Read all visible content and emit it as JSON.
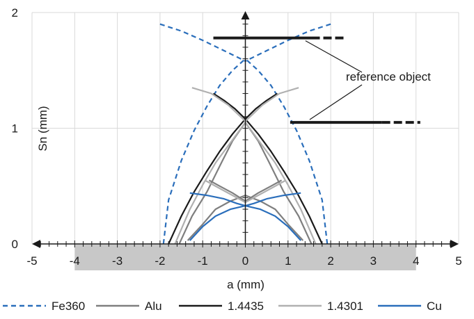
{
  "chart_data": {
    "type": "line",
    "xlabel": "a (mm)",
    "ylabel": "Sn (mm)",
    "xlim": [
      -5,
      5
    ],
    "ylim": [
      0,
      2
    ],
    "x_ticks": [
      -5,
      -4,
      -3,
      -2,
      -1,
      0,
      1,
      2,
      3,
      4,
      5
    ],
    "y_ticks": [
      0,
      1,
      2
    ],
    "grid": "vertical and horizontal, light gray",
    "shaded_band": {
      "x_range": [
        -4,
        4
      ],
      "color": "#c8c8c8"
    },
    "legend_position": "bottom",
    "annotation": "reference object",
    "reference_objects": [
      {
        "x_range": [
          -0.75,
          2.3
        ],
        "y": 1.78,
        "solid_to": 1.55
      },
      {
        "x_range": [
          1.05,
          4.1
        ],
        "y": 1.05,
        "solid_to": 3.2
      }
    ],
    "series": [
      {
        "name": "Fe360",
        "color": "#2a6ebb",
        "dash": true,
        "curves": [
          {
            "x": [
              -1.92,
              -1.8,
              -1.5,
              -1.2,
              -0.9,
              -0.6,
              -0.3,
              0
            ],
            "y": [
              0.0,
              0.38,
              0.72,
              0.98,
              1.19,
              1.37,
              1.5,
              1.6
            ]
          },
          {
            "x": [
              1.92,
              1.8,
              1.5,
              1.2,
              0.9,
              0.6,
              0.3,
              0
            ],
            "y": [
              0.0,
              0.38,
              0.72,
              0.98,
              1.19,
              1.37,
              1.5,
              1.6
            ]
          },
          {
            "x": [
              -2.0,
              -1.5,
              -1.0,
              -0.5,
              0
            ],
            "y": [
              1.9,
              1.84,
              1.76,
              1.67,
              1.58
            ]
          },
          {
            "x": [
              2.0,
              1.5,
              1.0,
              0.5,
              0
            ],
            "y": [
              1.9,
              1.84,
              1.76,
              1.67,
              1.58
            ]
          }
        ]
      },
      {
        "name": "Alu",
        "color": "#7f7f7f",
        "dash": false,
        "curves": [
          {
            "x": [
              -1.55,
              -1.25,
              -0.9,
              -0.55,
              -0.3,
              0
            ],
            "y": [
              0.0,
              0.24,
              0.45,
              0.71,
              0.89,
              1.05
            ]
          },
          {
            "x": [
              1.55,
              1.25,
              0.9,
              0.55,
              0.3,
              0
            ],
            "y": [
              0.0,
              0.24,
              0.45,
              0.71,
              0.89,
              1.05
            ]
          },
          {
            "x": [
              -1.35,
              -1.0,
              -0.7,
              -0.35,
              0
            ],
            "y": [
              0.03,
              0.17,
              0.3,
              0.37,
              0.42
            ]
          },
          {
            "x": [
              1.35,
              1.0,
              0.7,
              0.35,
              0
            ],
            "y": [
              0.03,
              0.17,
              0.3,
              0.37,
              0.42
            ]
          },
          {
            "x": [
              -0.85,
              -0.6,
              -0.3,
              0
            ],
            "y": [
              0.55,
              0.5,
              0.44,
              0.37
            ]
          },
          {
            "x": [
              0.85,
              0.6,
              0.3,
              0
            ],
            "y": [
              0.55,
              0.5,
              0.44,
              0.37
            ]
          }
        ]
      },
      {
        "name": "1.4435",
        "color": "#1a1a1a",
        "dash": false,
        "curves": [
          {
            "x": [
              -1.8,
              -1.5,
              -1.2,
              -0.9,
              -0.6,
              -0.3,
              0
            ],
            "y": [
              0.0,
              0.24,
              0.45,
              0.63,
              0.8,
              0.95,
              1.08
            ]
          },
          {
            "x": [
              1.8,
              1.5,
              1.2,
              0.9,
              0.6,
              0.3,
              0
            ],
            "y": [
              0.0,
              0.24,
              0.45,
              0.63,
              0.8,
              0.95,
              1.08
            ]
          },
          {
            "x": [
              -0.75,
              -0.5,
              -0.25,
              0
            ],
            "y": [
              1.3,
              1.24,
              1.17,
              1.08
            ]
          },
          {
            "x": [
              0.75,
              0.5,
              0.25,
              0
            ],
            "y": [
              1.3,
              1.24,
              1.17,
              1.08
            ]
          }
        ]
      },
      {
        "name": "1.4301",
        "color": "#b0b0b0",
        "dash": false,
        "curves": [
          {
            "x": [
              -1.65,
              -1.3,
              -1.0,
              -0.7,
              -0.4,
              0
            ],
            "y": [
              0.0,
              0.3,
              0.51,
              0.7,
              0.85,
              1.05
            ]
          },
          {
            "x": [
              1.65,
              1.3,
              1.0,
              0.7,
              0.4,
              0
            ],
            "y": [
              0.0,
              0.3,
              0.51,
              0.7,
              0.85,
              1.05
            ]
          },
          {
            "x": [
              -1.25,
              -0.8,
              -0.4,
              0
            ],
            "y": [
              1.35,
              1.3,
              1.2,
              1.06
            ]
          },
          {
            "x": [
              1.25,
              0.8,
              0.4,
              0
            ],
            "y": [
              1.35,
              1.3,
              1.2,
              1.06
            ]
          },
          {
            "x": [
              -0.95,
              -0.6,
              -0.3,
              0
            ],
            "y": [
              0.55,
              0.48,
              0.42,
              0.36
            ]
          },
          {
            "x": [
              0.95,
              0.6,
              0.3,
              0
            ],
            "y": [
              0.55,
              0.48,
              0.42,
              0.36
            ]
          }
        ]
      },
      {
        "name": "Cu",
        "color": "#2a6ebb",
        "dash": false,
        "curves": [
          {
            "x": [
              -1.3,
              -1.0,
              -0.7,
              -0.35,
              0
            ],
            "y": [
              0.03,
              0.15,
              0.24,
              0.3,
              0.33
            ]
          },
          {
            "x": [
              1.3,
              1.0,
              0.7,
              0.35,
              0
            ],
            "y": [
              0.03,
              0.15,
              0.24,
              0.3,
              0.33
            ]
          },
          {
            "x": [
              -1.3,
              -0.9,
              -0.5,
              -0.2,
              0
            ],
            "y": [
              0.44,
              0.42,
              0.39,
              0.35,
              0.33
            ]
          },
          {
            "x": [
              1.3,
              0.9,
              0.5,
              0.2,
              0
            ],
            "y": [
              0.44,
              0.42,
              0.39,
              0.35,
              0.33
            ]
          }
        ]
      }
    ]
  }
}
